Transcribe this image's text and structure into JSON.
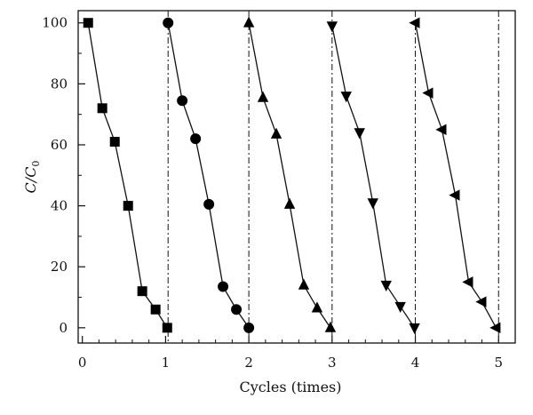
{
  "chart_data": {
    "type": "scatter",
    "title": "",
    "xlabel": "Cycles (times)",
    "ylabel": "C/C",
    "ylabel_subscript": "0",
    "xlim": [
      -0.05,
      5.2
    ],
    "ylim": [
      -5,
      104
    ],
    "x_ticks": [
      0,
      1,
      2,
      3,
      4,
      5
    ],
    "y_ticks": [
      0,
      20,
      40,
      60,
      80,
      100
    ],
    "x_tick_labels": [
      "0",
      "1",
      "2",
      "3",
      "4",
      "5"
    ],
    "y_tick_labels": [
      "0",
      "20",
      "40",
      "60",
      "80",
      "100"
    ],
    "cycle_boundaries": [
      1.03,
      2.0,
      3.0,
      4.0,
      5.0
    ],
    "grid": false,
    "legend": "none",
    "series": [
      {
        "marker": "square",
        "x": [
          0.07,
          0.24,
          0.39,
          0.55,
          0.72,
          0.88,
          1.02
        ],
        "y": [
          100,
          72,
          61,
          40,
          12,
          6,
          0
        ]
      },
      {
        "marker": "circle",
        "x": [
          1.03,
          1.2,
          1.36,
          1.52,
          1.69,
          1.85,
          2.0
        ],
        "y": [
          100,
          74.5,
          62,
          40.5,
          13.5,
          6,
          0
        ]
      },
      {
        "marker": "triangle-up",
        "x": [
          2.0,
          2.17,
          2.33,
          2.49,
          2.66,
          2.82,
          2.98
        ],
        "y": [
          100,
          75.5,
          63.5,
          40.5,
          14,
          6.5,
          0
        ]
      },
      {
        "marker": "triangle-down",
        "x": [
          3.0,
          3.17,
          3.33,
          3.49,
          3.65,
          3.82,
          3.99
        ],
        "y": [
          99,
          76,
          64,
          41,
          14,
          7,
          0
        ]
      },
      {
        "marker": "triangle-left",
        "x": [
          4.0,
          4.16,
          4.32,
          4.48,
          4.64,
          4.8,
          4.97
        ],
        "y": [
          100,
          77,
          65,
          43.5,
          15,
          8.5,
          0
        ]
      }
    ]
  }
}
